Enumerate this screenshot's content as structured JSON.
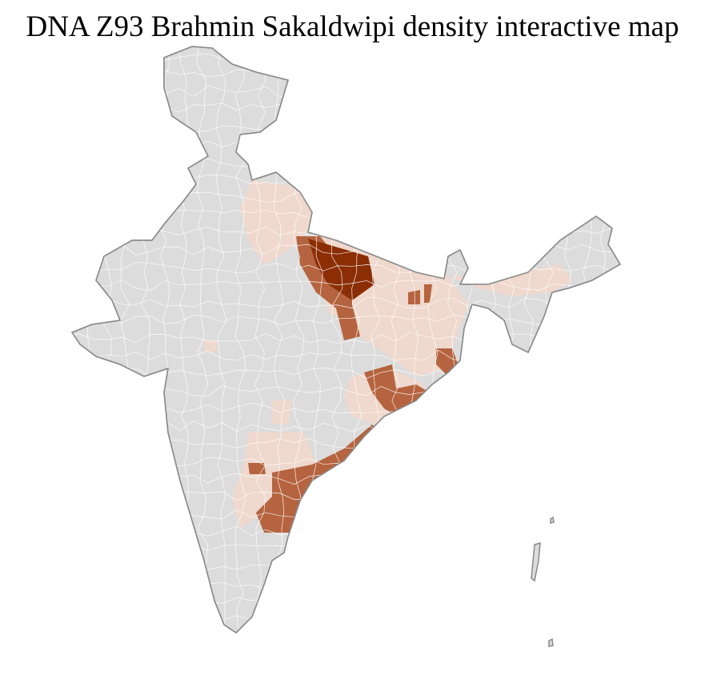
{
  "title": "DNA Z93 Brahmin Sakaldwipi density interactive map",
  "colors": {
    "no_data": "#dcdcdc",
    "border": "#8a8a8a",
    "low": "#efd8cd",
    "medium": "#b5643f",
    "high": "#8b2e05"
  }
}
